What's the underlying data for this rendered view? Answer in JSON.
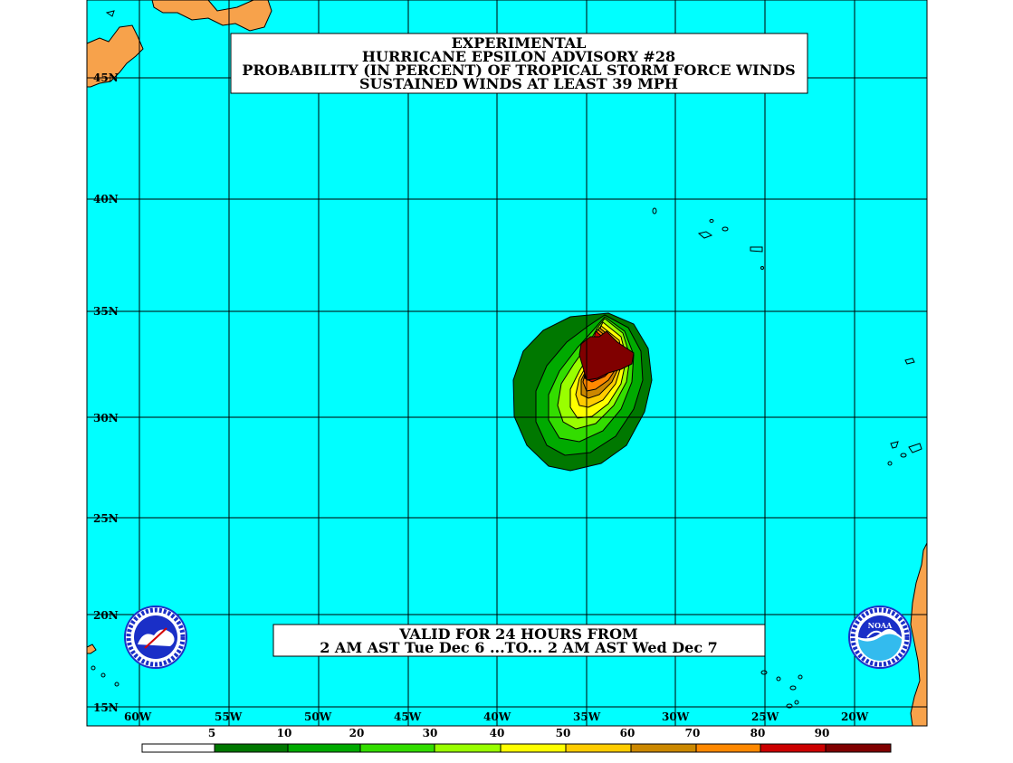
{
  "title": {
    "line1": "EXPERIMENTAL",
    "line2": "HURRICANE EPSILON ADVISORY #28",
    "line3": "PROBABILITY (IN PERCENT) OF TROPICAL STORM FORCE WINDS",
    "line4": "SUSTAINED WINDS AT LEAST 39 MPH"
  },
  "valid": {
    "line1": "VALID FOR 24 HOURS FROM",
    "line2": "2 AM AST Tue Dec 6 ...TO... 2 AM AST Wed Dec 7"
  },
  "lat_labels": [
    "45N",
    "40N",
    "35N",
    "30N",
    "25N",
    "20N",
    "15N"
  ],
  "lon_labels": [
    "60W",
    "55W",
    "50W",
    "45W",
    "40W",
    "35W",
    "30W",
    "25W",
    "20W"
  ],
  "legend": {
    "ticks": [
      "5",
      "10",
      "20",
      "30",
      "40",
      "50",
      "60",
      "70",
      "80",
      "90"
    ],
    "colors": [
      "#ffffff",
      "#007800",
      "#00aa00",
      "#33dd00",
      "#99ff00",
      "#ffff00",
      "#ffcc00",
      "#cc8800",
      "#ff8800",
      "#cc0000",
      "#800000",
      "#9900aa"
    ]
  },
  "colors": {
    "ocean": "#00ffff",
    "land": "#f7a24b",
    "grid": "#000000"
  },
  "logos": {
    "nws": "NATIONAL WEATHER SERVICE",
    "noaa": "NOAA"
  }
}
